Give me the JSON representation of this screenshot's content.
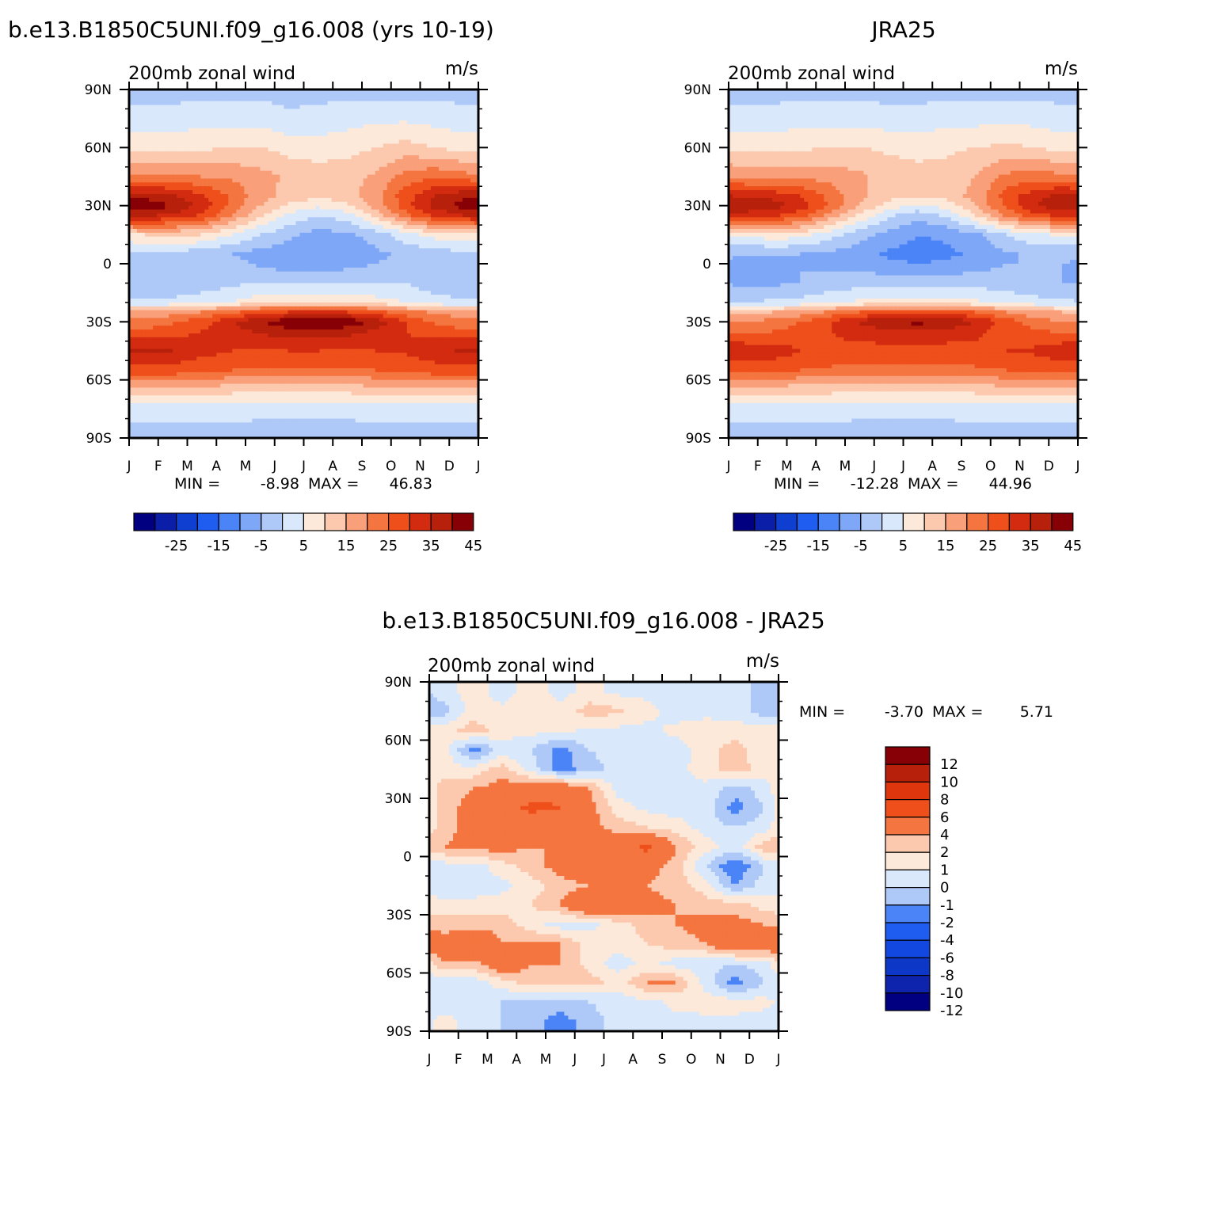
{
  "figure": {
    "colors": {
      "full_scale": [
        "#000080",
        "#0b1ea8",
        "#0e3fd0",
        "#1f5cf0",
        "#4a84f7",
        "#7ea7f7",
        "#aec8f8",
        "#d9e9fb",
        "#fde9d9",
        "#fcc8ae",
        "#f99f79",
        "#f4753f",
        "#ee4f1b",
        "#d32b10",
        "#b7200a",
        "#860006"
      ],
      "diff_scale": [
        "#000080",
        "#0f24ad",
        "#0d37c6",
        "#1248df",
        "#1f5cf0",
        "#4a84f7",
        "#aec8f8",
        "#d9e9fb",
        "#fde9d9",
        "#fcc8ae",
        "#f4753f",
        "#ee4f1b",
        "#e0360d",
        "#b7200a",
        "#860006"
      ]
    },
    "panels": [
      {
        "id": "model",
        "title": "b.e13.B1850C5UNI.f09_g16.008 (yrs 10-19)",
        "left_label": "200mb zonal wind",
        "right_label": "m/s",
        "stats": {
          "min_label": "MIN =",
          "min": "-8.98",
          "max_label": "MAX =",
          "max": "46.83"
        },
        "colorbar_labels": [
          "-25",
          "-15",
          "-5",
          "5",
          "15",
          "25",
          "35",
          "45"
        ]
      },
      {
        "id": "obs",
        "title": "JRA25",
        "left_label": "200mb zonal wind",
        "right_label": "m/s",
        "stats": {
          "min_label": "MIN =",
          "min": "-12.28",
          "max_label": "MAX =",
          "max": "44.96"
        },
        "colorbar_labels": [
          "-25",
          "-15",
          "-5",
          "5",
          "15",
          "25",
          "35",
          "45"
        ]
      },
      {
        "id": "diff",
        "title": "b.e13.B1850C5UNI.f09_g16.008 - JRA25",
        "left_label": "200mb zonal wind",
        "right_label": "m/s",
        "stats": {
          "min_label": "MIN =",
          "min": "-3.70",
          "max_label": "MAX =",
          "max": "5.71"
        },
        "colorbar_labels": [
          "12",
          "10",
          "8",
          "6",
          "4",
          "2",
          "1",
          "0",
          "-1",
          "-2",
          "-4",
          "-6",
          "-8",
          "-10",
          "-12"
        ]
      }
    ]
  },
  "chart_data": [
    {
      "type": "heatmap",
      "title": "b.e13.B1850C5UNI.f09_g16.008 (yrs 10-19)",
      "subtitle": "200mb zonal wind",
      "units": "m/s",
      "x_ticks": [
        "J",
        "F",
        "M",
        "A",
        "M",
        "J",
        "J",
        "A",
        "S",
        "O",
        "N",
        "D",
        "J"
      ],
      "y_ticks": [
        "90N",
        "60N",
        "30N",
        "0",
        "30S",
        "60S",
        "90S"
      ],
      "ylim": [
        -90,
        90
      ],
      "x": [
        0.5,
        1.5,
        2.5,
        3.5,
        4.5,
        5.5,
        6.5,
        7.5,
        8.5,
        9.5,
        10.5,
        11.5
      ],
      "y": [
        90,
        75,
        60,
        45,
        35,
        30,
        25,
        15,
        5,
        0,
        -10,
        -20,
        -25,
        -30,
        -35,
        -45,
        -55,
        -65,
        -75,
        -90
      ],
      "values": [
        [
          -2,
          -2,
          -2,
          -2,
          -2,
          -2,
          -2,
          -2,
          -2,
          -2,
          -2,
          -2
        ],
        [
          2,
          2,
          3,
          3,
          3,
          1,
          2,
          3,
          4,
          4,
          3,
          2
        ],
        [
          8,
          8,
          9,
          10,
          10,
          8,
          7,
          8,
          10,
          12,
          10,
          8
        ],
        [
          20,
          20,
          20,
          19,
          17,
          14,
          13,
          13,
          16,
          22,
          24,
          22
        ],
        [
          38,
          36,
          31,
          24,
          17,
          13,
          11,
          13,
          18,
          28,
          35,
          39
        ],
        [
          44,
          40,
          33,
          24,
          15,
          9,
          6,
          9,
          17,
          28,
          37,
          42
        ],
        [
          36,
          34,
          29,
          20,
          11,
          4,
          0,
          3,
          12,
          23,
          31,
          35
        ],
        [
          10,
          11,
          10,
          5,
          0,
          -4,
          -7,
          -6,
          -3,
          3,
          7,
          9
        ],
        [
          -2,
          -2,
          -3,
          -5,
          -7,
          -8,
          -9,
          -8,
          -6,
          -4,
          -2,
          -2
        ],
        [
          -1,
          -2,
          -2,
          -3,
          -6,
          -8,
          -8,
          -7,
          -5,
          -3,
          -1,
          -1
        ],
        [
          -4,
          -5,
          -3,
          -1,
          0,
          0,
          0,
          0,
          0,
          0,
          -3,
          -4
        ],
        [
          1,
          2,
          3,
          5,
          8,
          9,
          10,
          9,
          7,
          5,
          2,
          1
        ],
        [
          16,
          18,
          20,
          24,
          28,
          30,
          31,
          30,
          27,
          22,
          19,
          17
        ],
        [
          22,
          24,
          28,
          34,
          40,
          44,
          46,
          44,
          38,
          30,
          24,
          22
        ],
        [
          26,
          28,
          30,
          33,
          36,
          38,
          38,
          37,
          34,
          30,
          28,
          26
        ],
        [
          36,
          35,
          32,
          30,
          29,
          30,
          30,
          29,
          30,
          31,
          33,
          36
        ],
        [
          28,
          28,
          26,
          25,
          24,
          24,
          24,
          24,
          25,
          26,
          28,
          28
        ],
        [
          14,
          14,
          13,
          12,
          12,
          12,
          12,
          12,
          13,
          14,
          14,
          14
        ],
        [
          2,
          2,
          2,
          2,
          1,
          1,
          1,
          1,
          2,
          2,
          2,
          2
        ],
        [
          -2,
          -2,
          -2,
          -2,
          -2,
          -2,
          -2,
          -2,
          -2,
          -2,
          -2,
          -2
        ]
      ],
      "levels": [
        -30,
        -25,
        -20,
        -15,
        -10,
        -5,
        0,
        5,
        10,
        15,
        20,
        25,
        30,
        35,
        40,
        45
      ],
      "min": -8.98,
      "max": 46.83
    },
    {
      "type": "heatmap",
      "title": "JRA25",
      "subtitle": "200mb zonal wind",
      "units": "m/s",
      "x_ticks": [
        "J",
        "F",
        "M",
        "A",
        "M",
        "J",
        "J",
        "A",
        "S",
        "O",
        "N",
        "D",
        "J"
      ],
      "y_ticks": [
        "90N",
        "60N",
        "30N",
        "0",
        "30S",
        "60S",
        "90S"
      ],
      "ylim": [
        -90,
        90
      ],
      "x": [
        0.5,
        1.5,
        2.5,
        3.5,
        4.5,
        5.5,
        6.5,
        7.5,
        8.5,
        9.5,
        10.5,
        11.5
      ],
      "y": [
        90,
        75,
        60,
        45,
        35,
        30,
        25,
        15,
        5,
        0,
        -10,
        -20,
        -25,
        -30,
        -35,
        -45,
        -55,
        -65,
        -75,
        -90
      ],
      "values": [
        [
          -2,
          -2,
          -2,
          -2,
          -2,
          -2,
          -2,
          -2,
          -2,
          -2,
          -2,
          -2
        ],
        [
          2,
          2,
          3,
          3,
          3,
          2,
          2,
          3,
          3,
          4,
          3,
          2
        ],
        [
          8,
          8,
          9,
          10,
          10,
          9,
          8,
          9,
          10,
          11,
          10,
          8
        ],
        [
          19,
          19,
          19,
          18,
          16,
          13,
          12,
          12,
          15,
          21,
          23,
          21
        ],
        [
          34,
          33,
          30,
          23,
          16,
          12,
          10,
          12,
          17,
          27,
          33,
          37
        ],
        [
          40,
          38,
          33,
          24,
          15,
          8,
          4,
          7,
          15,
          26,
          35,
          39
        ],
        [
          32,
          31,
          27,
          18,
          9,
          1,
          -3,
          1,
          10,
          21,
          28,
          32
        ],
        [
          6,
          8,
          7,
          2,
          -3,
          -7,
          -10,
          -9,
          -6,
          0,
          4,
          6
        ],
        [
          -5,
          -5,
          -5,
          -6,
          -8,
          -11,
          -12,
          -11,
          -9,
          -6,
          -4,
          -4
        ],
        [
          -6,
          -6,
          -5,
          -6,
          -7,
          -9,
          -10,
          -9,
          -7,
          -5,
          -5,
          -5
        ],
        [
          -6,
          -6,
          -5,
          -3,
          -2,
          -2,
          -2,
          -2,
          -2,
          -3,
          -4,
          -5
        ],
        [
          0,
          1,
          2,
          4,
          6,
          7,
          8,
          7,
          6,
          4,
          2,
          1
        ],
        [
          14,
          15,
          17,
          21,
          25,
          27,
          28,
          27,
          25,
          20,
          17,
          15
        ],
        [
          20,
          22,
          25,
          30,
          36,
          40,
          42,
          40,
          35,
          28,
          22,
          20
        ],
        [
          24,
          25,
          27,
          30,
          32,
          34,
          34,
          33,
          31,
          28,
          26,
          24
        ],
        [
          34,
          33,
          30,
          29,
          28,
          28,
          28,
          28,
          29,
          30,
          31,
          34
        ],
        [
          26,
          26,
          25,
          24,
          23,
          23,
          24,
          23,
          24,
          25,
          26,
          26
        ],
        [
          13,
          13,
          12,
          12,
          11,
          11,
          11,
          11,
          12,
          13,
          13,
          13
        ],
        [
          2,
          2,
          2,
          2,
          1,
          1,
          1,
          1,
          2,
          2,
          2,
          2
        ],
        [
          -2,
          -2,
          -2,
          -2,
          -2,
          -2,
          -2,
          -2,
          -2,
          -2,
          -2,
          -2
        ]
      ],
      "levels": [
        -30,
        -25,
        -20,
        -15,
        -10,
        -5,
        0,
        5,
        10,
        15,
        20,
        25,
        30,
        35,
        40,
        45
      ],
      "min": -12.28,
      "max": 44.96
    },
    {
      "type": "heatmap",
      "title": "b.e13.B1850C5UNI.f09_g16.008 - JRA25",
      "subtitle": "200mb zonal wind",
      "units": "m/s",
      "x_ticks": [
        "J",
        "F",
        "M",
        "A",
        "M",
        "J",
        "J",
        "A",
        "S",
        "O",
        "N",
        "D",
        "J"
      ],
      "y_ticks": [
        "90N",
        "60N",
        "30N",
        "0",
        "30S",
        "60S",
        "90S"
      ],
      "ylim": [
        -90,
        90
      ],
      "x": [
        0.5,
        1.5,
        2.5,
        3.5,
        4.5,
        5.5,
        6.5,
        7.5,
        8.5,
        9.5,
        10.5,
        11.5
      ],
      "y": [
        85,
        75,
        65,
        55,
        45,
        35,
        25,
        15,
        5,
        -5,
        -15,
        -25,
        -35,
        -45,
        -55,
        -65,
        -75,
        -85
      ],
      "values": [
        [
          -0.5,
          0.5,
          -0.5,
          0.5,
          -0.3,
          0.3,
          -0.3,
          -0.3,
          -1,
          -0.5,
          -0.5,
          -1.5
        ],
        [
          -1.5,
          0.5,
          0.3,
          0.5,
          0.3,
          1.5,
          1.2,
          0.3,
          -0.5,
          -0.3,
          -0.5,
          -1.5
        ],
        [
          0.5,
          1.5,
          0.5,
          0.3,
          0.3,
          -0.3,
          -0.3,
          -0.3,
          0.3,
          0.5,
          0.5,
          0.5
        ],
        [
          0.5,
          -2.5,
          -0.5,
          -1,
          -2.5,
          -1,
          -0.5,
          -0.5,
          -0.5,
          0.5,
          1.5,
          0.3
        ],
        [
          0.5,
          0.3,
          1.5,
          -0.5,
          -2.5,
          -1.5,
          -0.5,
          -0.5,
          -0.3,
          0.5,
          1.5,
          0.5
        ],
        [
          1.5,
          2,
          2.5,
          3,
          3.5,
          2,
          -0.5,
          -0.5,
          -0.5,
          -0.3,
          -1.5,
          -0.5
        ],
        [
          1.5,
          2.5,
          3,
          4.5,
          4,
          2.5,
          0.5,
          -0.3,
          -0.5,
          -0.5,
          -2.5,
          -1
        ],
        [
          1.5,
          2.5,
          2.5,
          2.5,
          2,
          2.5,
          1.5,
          1,
          0.5,
          -0.5,
          -1,
          -0.5
        ],
        [
          2,
          2.5,
          2.5,
          2,
          2,
          3,
          3,
          4.5,
          2,
          0.5,
          -0.5,
          1.5
        ],
        [
          -0.5,
          -0.5,
          0.5,
          1.5,
          2.5,
          3,
          2.5,
          2.5,
          1.5,
          -1,
          -3,
          -1
        ],
        [
          -0.5,
          -0.5,
          -0.3,
          0.5,
          1.5,
          2,
          2,
          2,
          1.5,
          0.5,
          -2,
          -0.5
        ],
        [
          0.3,
          0.3,
          0.5,
          1,
          2,
          4,
          3.5,
          2.5,
          2,
          1.5,
          1.5,
          0.5
        ],
        [
          1.5,
          1.5,
          1.5,
          0.5,
          -0.5,
          -0.3,
          0.5,
          1.5,
          2,
          2.5,
          2.5,
          2
        ],
        [
          2.5,
          4,
          2,
          2,
          2,
          0.5,
          0.5,
          1,
          1.5,
          2,
          4,
          3.5
        ],
        [
          2,
          1.5,
          3.5,
          2,
          2,
          0.5,
          -0.5,
          0.3,
          -0.5,
          -0.5,
          -1,
          -0.5
        ],
        [
          -0.5,
          -0.5,
          0.5,
          1.5,
          1.5,
          1.5,
          0.5,
          2,
          2,
          -0.5,
          -2.5,
          -1
        ],
        [
          -0.5,
          -0.5,
          -1,
          -1.5,
          -1.5,
          -1,
          -0.5,
          -0.3,
          0.3,
          0.5,
          0.5,
          0.3
        ],
        [
          0.3,
          -0.3,
          -1,
          -1.5,
          -2.5,
          -1.5,
          -0.5,
          -0.3,
          -0.3,
          -0.3,
          -0.3,
          -0.5
        ]
      ],
      "levels": [
        -12,
        -10,
        -8,
        -6,
        -4,
        -2,
        -1,
        0,
        1,
        2,
        4,
        6,
        8,
        10,
        12
      ],
      "min": -3.7,
      "max": 5.71
    }
  ]
}
